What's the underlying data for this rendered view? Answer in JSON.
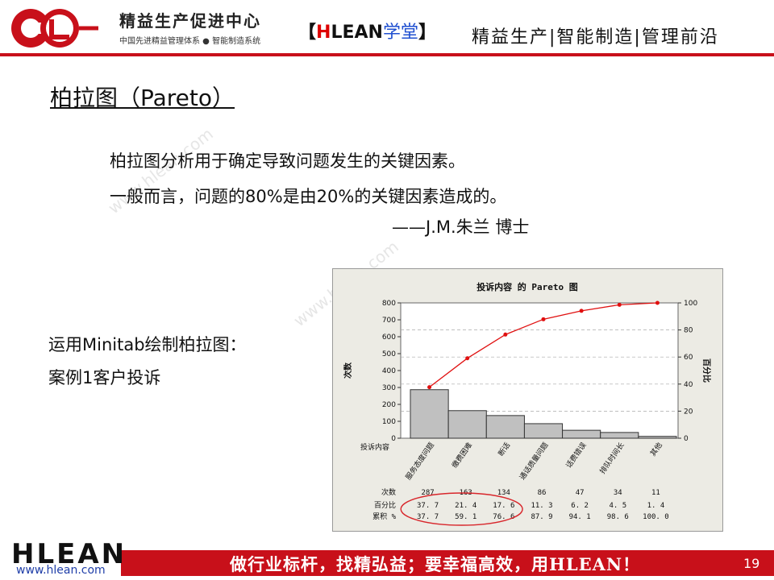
{
  "header": {
    "brand_name": "精益生产促进中心",
    "brand_sub": "中国先进精益管理体系 ● 智能制造系统",
    "study_bracket_open": "【",
    "study_hlean": "HLEAN",
    "study_label": "学堂",
    "study_bracket_close": "】",
    "slogan": "精益生产|智能制造|管理前沿"
  },
  "title": "柏拉图（Pareto）",
  "quote": {
    "line1": "柏拉图分析用于确定导致问题发生的关键因素。",
    "line2": "一般而言，问题的80%是由20%的关键因素造成的。",
    "attribution": "——J.M.朱兰 博士"
  },
  "side_text": {
    "line1": "运用Minitab绘制柏拉图：",
    "line2": "案例1客户投诉"
  },
  "watermark": "www.hlean.com",
  "chart_data": {
    "type": "bar",
    "title": "投诉内容 的 Pareto 图",
    "ylabel": "次数",
    "y2label": "百分比",
    "xlabel": "投诉内容",
    "categories": [
      "服务态度问题",
      "缴费困难",
      "断话",
      "通话质量问题",
      "话费错误",
      "排队时间长",
      "其他"
    ],
    "series": [
      {
        "name": "次数",
        "values": [
          287,
          163,
          134,
          86,
          47,
          34,
          11
        ]
      },
      {
        "name": "累积 %",
        "values": [
          37.7,
          59.1,
          76.6,
          87.9,
          94.1,
          98.6,
          100.0
        ]
      }
    ],
    "ylim": [
      0,
      800
    ],
    "y_ticks": [
      0,
      100,
      200,
      300,
      400,
      500,
      600,
      700,
      800
    ],
    "y2lim": [
      0,
      100
    ],
    "y2_ticks": [
      0,
      20,
      40,
      60,
      80,
      100
    ],
    "table": {
      "rows": [
        {
          "label": "次数",
          "values": [
            "287",
            "163",
            "134",
            "86",
            "47",
            "34",
            "11"
          ]
        },
        {
          "label": "百分比",
          "values": [
            "37. 7",
            "21. 4",
            "17. 6",
            "11. 3",
            "6. 2",
            "4. 5",
            "1. 4"
          ]
        },
        {
          "label": "累积 %",
          "values": [
            "37. 7",
            "59. 1",
            "76. 6",
            "87. 9",
            "94. 1",
            "98. 6",
            "100. 0"
          ]
        }
      ]
    },
    "grid": true,
    "highlight_color": "#d8262b"
  },
  "footer": {
    "logo": "HLEAN",
    "url": "www.hlean.com",
    "slogan": "做行业标杆，找精弘益；要幸福高效，用HLEAN！",
    "page": "19"
  },
  "colors": {
    "brand_red": "#c8101a",
    "accent_blue": "#1f4fd0"
  }
}
